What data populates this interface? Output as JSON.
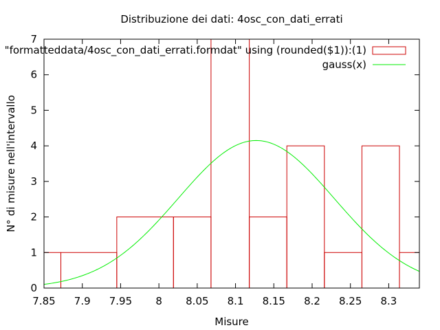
{
  "chart_data": {
    "type": "bar",
    "title": "Distribuzione dei dati: 4osc_con_dati_errati",
    "xlabel": "Misure",
    "ylabel": "N° di misure nell'intervallo",
    "xlim": [
      7.85,
      8.34
    ],
    "ylim": [
      0,
      7
    ],
    "xticks": [
      "7.85",
      "7.9",
      "7.95",
      "8",
      "8.05",
      "8.1",
      "8.15",
      "8.2",
      "8.25",
      "8.3"
    ],
    "xtick_values": [
      7.85,
      7.9,
      7.95,
      8.0,
      8.05,
      8.1,
      8.15,
      8.2,
      8.25,
      8.3
    ],
    "yticks": [
      "0",
      "1",
      "2",
      "3",
      "4",
      "5",
      "6",
      "7"
    ],
    "ytick_values": [
      0,
      1,
      2,
      3,
      4,
      5,
      6,
      7
    ],
    "legend_position": "top-right",
    "grid": false,
    "histogram": {
      "name": "\"formatteddata/4osc_con_dati_errati.formdat\" using (rounded($1)):(1)",
      "color": "#cc0000",
      "bins": [
        {
          "x0": 7.848,
          "x1": 7.872,
          "value": 1
        },
        {
          "x0": 7.872,
          "x1": 7.945,
          "value": 1
        },
        {
          "x0": 7.945,
          "x1": 8.019,
          "value": 2
        },
        {
          "x0": 8.019,
          "x1": 8.068,
          "value": 2
        },
        {
          "x0": 8.068,
          "x1": 8.118,
          "value": 7
        },
        {
          "x0": 8.118,
          "x1": 8.167,
          "value": 2
        },
        {
          "x0": 8.167,
          "x1": 8.216,
          "value": 4
        },
        {
          "x0": 8.216,
          "x1": 8.265,
          "value": 1
        },
        {
          "x0": 8.265,
          "x1": 8.314,
          "value": 4
        },
        {
          "x0": 8.314,
          "x1": 8.34,
          "value": 1
        }
      ]
    },
    "curve": {
      "name": "gauss(x)",
      "color": "#00ee00",
      "mean": 8.127,
      "sigma": 0.102,
      "amplitude": 4.15
    }
  }
}
